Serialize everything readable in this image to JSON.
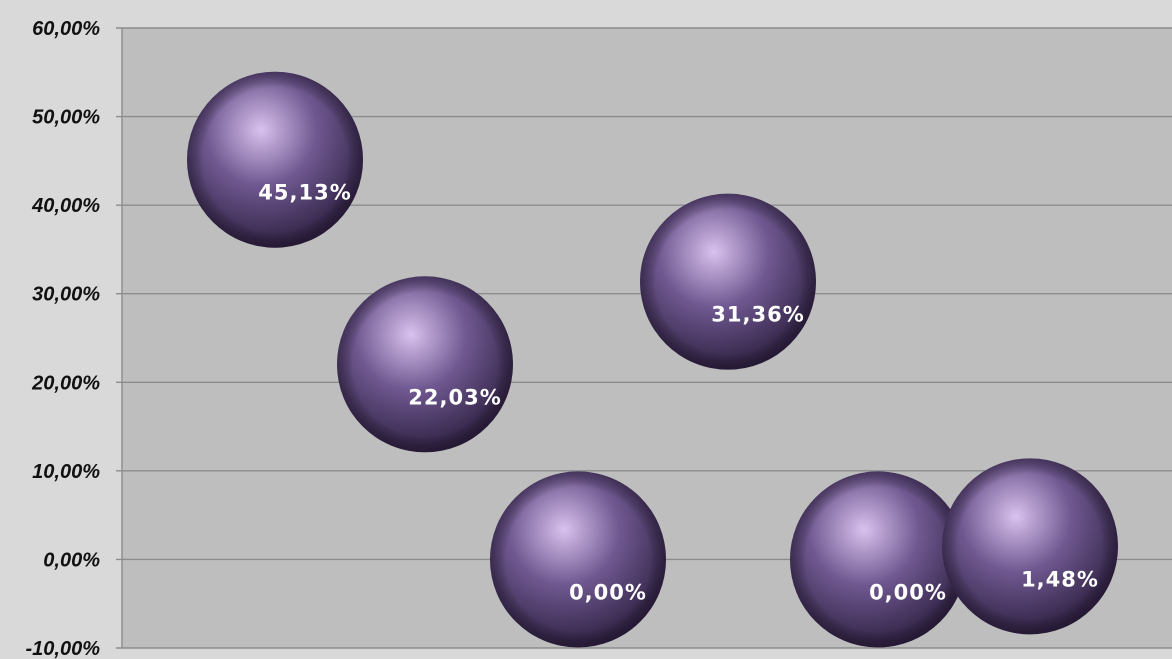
{
  "chart_data": {
    "type": "scatter",
    "title": "",
    "xlabel": "",
    "ylabel": "",
    "ylim": [
      -10,
      60
    ],
    "ytick_step": 10,
    "ytick_labels": [
      "-10,00%",
      "0,00%",
      "10,00%",
      "20,00%",
      "30,00%",
      "40,00%",
      "50,00%",
      "60,00%"
    ],
    "grid": true,
    "legend": "none",
    "x_count": 6,
    "series": [
      {
        "x": [
          1,
          2,
          3,
          4,
          5,
          6
        ],
        "values": [
          45.13,
          22.03,
          0.0,
          31.36,
          0.0,
          1.48
        ],
        "labels": [
          "45,13%",
          "22,03%",
          "0,00%",
          "31,36%",
          "0,00%",
          "1,48%"
        ]
      }
    ],
    "colors": {
      "plot_background": "#bebebe",
      "page_background": "#d9d9d9",
      "gridline": "#8c8c8c",
      "bubble_light": "#d9c2ee",
      "bubble_mid": "#6f5890",
      "bubble_dark": "#2a1d3c"
    }
  }
}
